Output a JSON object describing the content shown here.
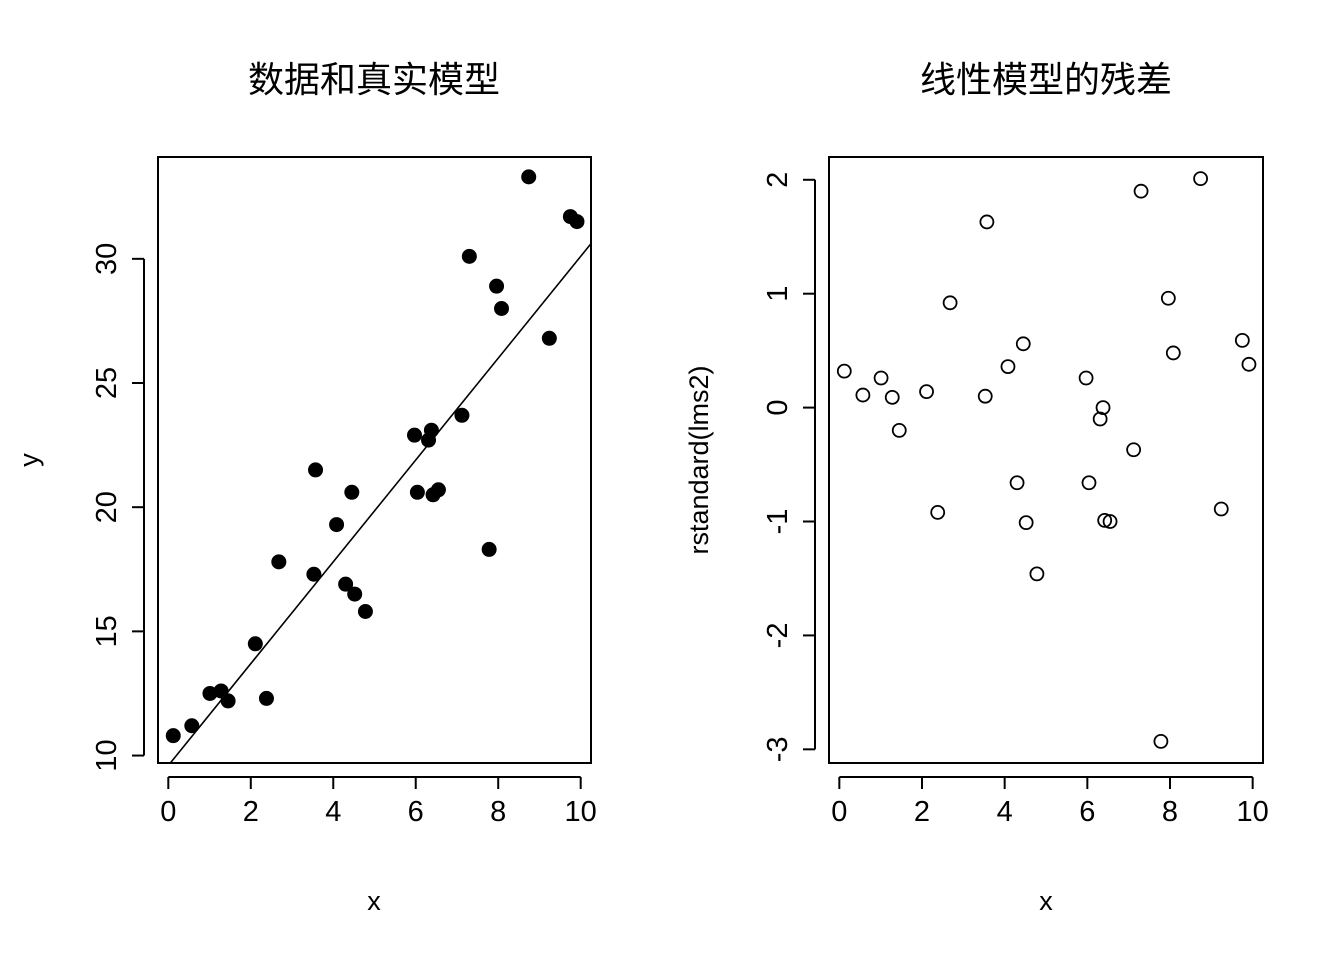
{
  "chart_data": [
    {
      "type": "scatter",
      "title": "数据和真实模型",
      "xlabel": "x",
      "ylabel": "y",
      "xlim": [
        -0.25,
        10.25
      ],
      "ylim": [
        9.7,
        34.1
      ],
      "xticks": [
        0,
        2,
        4,
        6,
        8,
        10
      ],
      "xtick_labels": [
        "0",
        "2",
        "4",
        "6",
        "8",
        "10"
      ],
      "yticks": [
        10,
        15,
        20,
        25,
        30
      ],
      "ytick_labels": [
        "10",
        "15",
        "20",
        "25",
        "30"
      ],
      "marker": "filled-circle",
      "points": {
        "x": [
          0.12,
          0.57,
          1.01,
          1.28,
          1.45,
          2.11,
          2.38,
          2.68,
          3.53,
          3.57,
          4.08,
          4.3,
          4.45,
          4.52,
          4.78,
          5.97,
          6.04,
          6.31,
          6.38,
          6.42,
          6.55,
          7.12,
          7.3,
          7.78,
          7.96,
          8.08,
          8.74,
          9.24,
          9.75,
          9.91
        ],
        "y": [
          10.8,
          11.2,
          12.5,
          12.6,
          12.2,
          14.5,
          12.3,
          17.8,
          17.3,
          21.5,
          19.3,
          16.9,
          20.6,
          16.5,
          15.8,
          22.9,
          20.6,
          22.7,
          23.1,
          20.5,
          20.7,
          23.7,
          30.1,
          18.3,
          28.9,
          28.0,
          33.3,
          26.8,
          31.7,
          31.5
        ]
      },
      "true_line": {
        "intercept": 9.6,
        "slope": 2.05
      },
      "grid": false,
      "legend": "none"
    },
    {
      "type": "scatter",
      "title": "线性模型的残差",
      "xlabel": "x",
      "ylabel": "rstandard(lms2)",
      "xlim": [
        -0.25,
        10.25
      ],
      "ylim": [
        -3.12,
        2.2
      ],
      "xticks": [
        0,
        2,
        4,
        6,
        8,
        10
      ],
      "xtick_labels": [
        "0",
        "2",
        "4",
        "6",
        "8",
        "10"
      ],
      "yticks": [
        -3,
        -2,
        -1,
        0,
        1,
        2
      ],
      "ytick_labels": [
        "-3",
        "-2",
        "-1",
        "0",
        "1",
        "2"
      ],
      "marker": "open-circle",
      "points": {
        "x": [
          0.12,
          0.57,
          1.01,
          1.28,
          1.45,
          2.11,
          2.38,
          2.68,
          3.53,
          3.57,
          4.08,
          4.3,
          4.45,
          4.52,
          4.78,
          5.97,
          6.04,
          6.31,
          6.38,
          6.42,
          6.55,
          7.12,
          7.3,
          7.78,
          7.96,
          8.08,
          8.74,
          9.24,
          9.75,
          9.91
        ],
        "y": [
          0.32,
          0.11,
          0.26,
          0.09,
          -0.2,
          0.14,
          -0.92,
          0.92,
          0.1,
          1.63,
          0.36,
          -0.66,
          0.56,
          -1.01,
          -1.46,
          0.26,
          -0.66,
          -0.1,
          0.0,
          -0.99,
          -1.0,
          -0.37,
          1.9,
          -2.93,
          0.96,
          0.48,
          2.01,
          -0.89,
          0.59,
          0.38
        ]
      },
      "grid": false,
      "legend": "none"
    }
  ]
}
